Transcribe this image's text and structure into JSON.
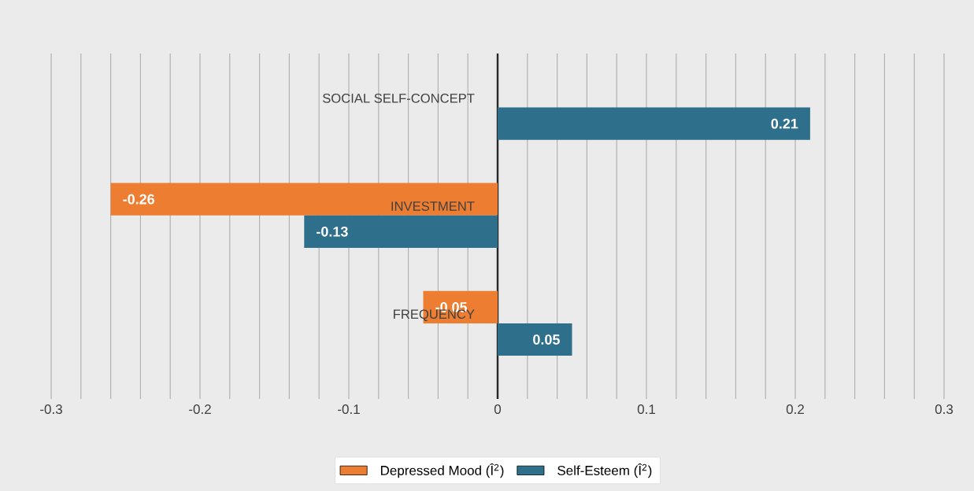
{
  "chart_data": {
    "type": "bar",
    "orientation": "horizontal",
    "categories": [
      "SOCIAL SELF-CONCEPT",
      "INVESTMENT",
      "FREQUENCY"
    ],
    "series": [
      {
        "name": "Depressed Mood (Î$^{2}$)",
        "color": "#ed7d31",
        "values": [
          null,
          -0.26,
          -0.05
        ]
      },
      {
        "name": "Self-Esteem (Î$^{2}$)",
        "color": "#2e6f8c",
        "values": [
          0.21,
          -0.13,
          0.05
        ]
      }
    ],
    "xlim": [
      -0.3,
      0.3
    ],
    "xticks": [
      -0.3,
      {
        "value": -0.28,
        "label": null
      },
      {
        "value": -0.26,
        "label": null
      },
      {
        "value": -0.24,
        "label": null
      },
      {
        "value": -0.22,
        "label": null
      },
      -0.2,
      {
        "value": -0.18,
        "label": null
      },
      {
        "value": -0.16,
        "label": null
      },
      {
        "value": -0.14,
        "label": null
      },
      {
        "value": -0.12,
        "label": null
      },
      -0.1,
      {
        "value": -0.08,
        "label": null
      },
      {
        "value": -0.06,
        "label": null
      },
      {
        "value": -0.04,
        "label": null
      },
      {
        "value": -0.02,
        "label": null
      },
      0,
      {
        "value": 0.02,
        "label": null
      },
      {
        "value": 0.04,
        "label": null
      },
      {
        "value": 0.06,
        "label": null
      },
      {
        "value": 0.08,
        "label": null
      },
      0.1,
      {
        "value": 0.12,
        "label": null
      },
      {
        "value": 0.14,
        "label": null
      },
      {
        "value": 0.16,
        "label": null
      },
      {
        "value": 0.18,
        "label": null
      },
      0.2,
      {
        "value": 0.22,
        "label": null
      },
      {
        "value": 0.24,
        "label": null
      },
      {
        "value": 0.26,
        "label": null
      },
      {
        "value": 0.28,
        "label": null
      },
      0.3
    ],
    "grid": "x",
    "legend": "bottom",
    "data_labels": true
  }
}
